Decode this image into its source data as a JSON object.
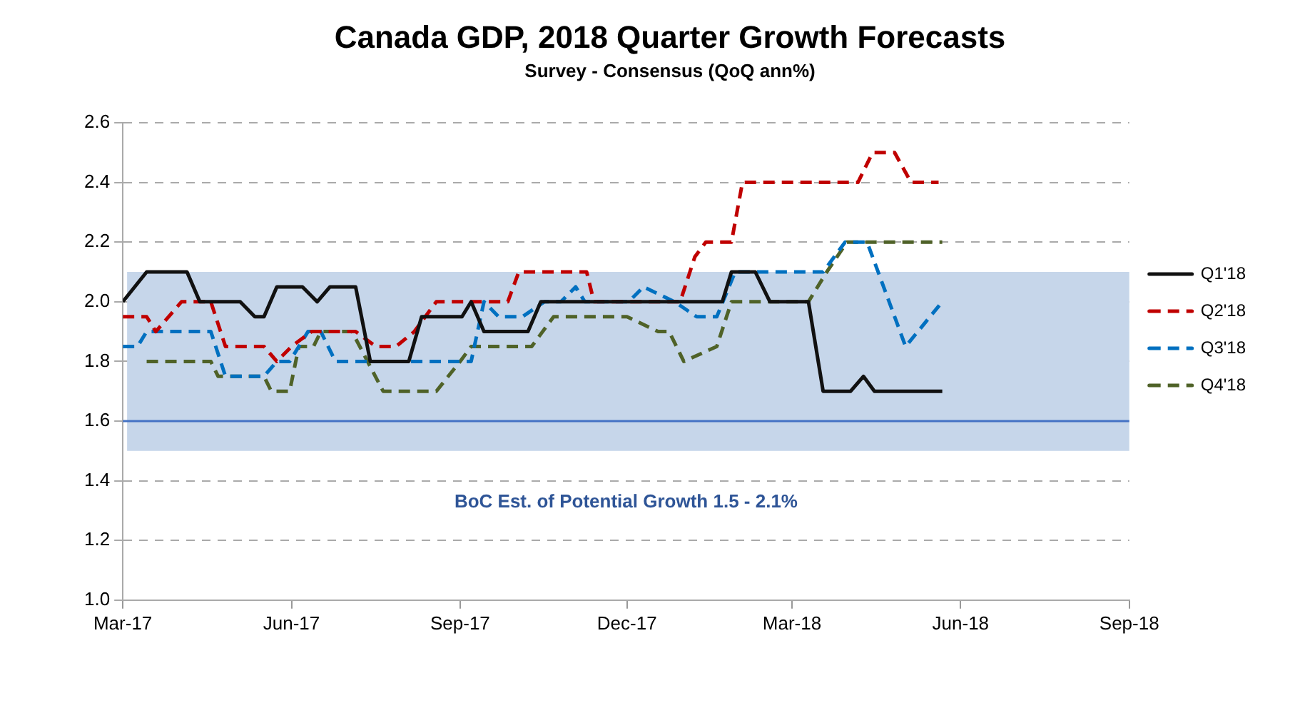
{
  "chart_data": {
    "type": "line",
    "title": "Canada GDP, 2018 Quarter Growth Forecasts",
    "subtitle": "Survey - Consensus (QoQ ann%)",
    "xlim": [
      "2017-03-01",
      "2018-09-01"
    ],
    "xticks": [
      {
        "value": "2017-03-01",
        "label": "Mar-17"
      },
      {
        "value": "2017-06-01",
        "label": "Jun-17"
      },
      {
        "value": "2017-09-01",
        "label": "Sep-17"
      },
      {
        "value": "2017-12-01",
        "label": "Dec-17"
      },
      {
        "value": "2018-03-01",
        "label": "Mar-18"
      },
      {
        "value": "2018-06-01",
        "label": "Jun-18"
      },
      {
        "value": "2018-09-01",
        "label": "Sep-18"
      }
    ],
    "ylim": [
      1.0,
      2.6
    ],
    "yticks": [
      {
        "value": 1.0,
        "label": "1.0"
      },
      {
        "value": 1.2,
        "label": "1.2"
      },
      {
        "value": 1.4,
        "label": "1.4"
      },
      {
        "value": 1.6,
        "label": "1.6"
      },
      {
        "value": 1.8,
        "label": "1.8"
      },
      {
        "value": 2.0,
        "label": "2.0"
      },
      {
        "value": 2.2,
        "label": "2.2"
      },
      {
        "value": 2.4,
        "label": "2.4"
      },
      {
        "value": 2.6,
        "label": "2.6"
      }
    ],
    "grid": "y",
    "legend": "right",
    "marker": "none",
    "bands": [
      {
        "axis": "y",
        "from": 1.5,
        "to": 2.1,
        "label": "BoC Est. of Potential Growth 1.5 - 2.1%",
        "color": "#c6d6ea"
      }
    ],
    "ref_lines": [
      {
        "axis": "y",
        "value": 1.6,
        "color": "#4472c4",
        "line_style": "solid"
      }
    ],
    "series": [
      {
        "name": "Q1'18",
        "color": "#111111",
        "line_style": "solid",
        "x": [
          "2017-03-01",
          "2017-03-14",
          "2017-04-05",
          "2017-04-12",
          "2017-05-04",
          "2017-05-12",
          "2017-05-17",
          "2017-05-24",
          "2017-06-07",
          "2017-06-15",
          "2017-06-22",
          "2017-07-06",
          "2017-07-14",
          "2017-08-04",
          "2017-08-11",
          "2017-09-02",
          "2017-09-07",
          "2017-09-14",
          "2017-10-08",
          "2017-10-15",
          "2018-01-22",
          "2018-01-27",
          "2018-02-09",
          "2018-02-17",
          "2018-03-10",
          "2018-03-18",
          "2018-04-02",
          "2018-04-09",
          "2018-04-15",
          "2018-05-22"
        ],
        "values": [
          2.0,
          2.1,
          2.1,
          2.0,
          2.0,
          1.95,
          1.95,
          2.05,
          2.05,
          2.0,
          2.05,
          2.05,
          1.8,
          1.8,
          1.95,
          1.95,
          2.0,
          1.9,
          1.9,
          2.0,
          2.0,
          2.1,
          2.1,
          2.0,
          2.0,
          1.7,
          1.7,
          1.75,
          1.7,
          1.7
        ]
      },
      {
        "name": "Q2'18",
        "color": "#c00000",
        "line_style": "dashed",
        "x": [
          "2017-03-01",
          "2017-03-14",
          "2017-03-19",
          "2017-04-02",
          "2017-04-18",
          "2017-04-26",
          "2017-05-17",
          "2017-05-24",
          "2017-06-01",
          "2017-06-12",
          "2017-07-06",
          "2017-07-17",
          "2017-07-28",
          "2017-08-07",
          "2017-08-19",
          "2017-09-07",
          "2017-09-27",
          "2017-10-03",
          "2017-11-09",
          "2017-11-13",
          "2017-12-30",
          "2018-01-07",
          "2018-01-13",
          "2018-01-27",
          "2018-02-02",
          "2018-04-06",
          "2018-04-14",
          "2018-04-26",
          "2018-05-05",
          "2018-05-20"
        ],
        "values": [
          1.95,
          1.95,
          1.9,
          2.0,
          2.0,
          1.85,
          1.85,
          1.8,
          1.85,
          1.9,
          1.9,
          1.85,
          1.85,
          1.9,
          2.0,
          2.0,
          2.0,
          2.1,
          2.1,
          2.0,
          2.0,
          2.15,
          2.2,
          2.2,
          2.4,
          2.4,
          2.5,
          2.5,
          2.4,
          2.4
        ]
      },
      {
        "name": "Q3'18",
        "color": "#0070c0",
        "line_style": "dashed",
        "x": [
          "2017-03-01",
          "2017-03-09",
          "2017-03-14",
          "2017-04-18",
          "2017-04-26",
          "2017-05-17",
          "2017-05-24",
          "2017-05-31",
          "2017-06-10",
          "2017-06-17",
          "2017-06-25",
          "2017-09-07",
          "2017-09-14",
          "2017-09-22",
          "2017-10-05",
          "2017-10-17",
          "2017-10-26",
          "2017-11-03",
          "2017-11-08",
          "2017-12-02",
          "2017-12-10",
          "2017-12-27",
          "2018-01-08",
          "2018-01-19",
          "2018-01-29",
          "2018-03-18",
          "2018-03-30",
          "2018-04-11",
          "2018-05-02",
          "2018-05-22"
        ],
        "values": [
          1.85,
          1.85,
          1.9,
          1.9,
          1.75,
          1.75,
          1.8,
          1.8,
          1.9,
          1.9,
          1.8,
          1.8,
          2.0,
          1.95,
          1.95,
          2.0,
          2.0,
          2.05,
          2.0,
          2.0,
          2.05,
          2.0,
          1.95,
          1.95,
          2.1,
          2.1,
          2.2,
          2.2,
          1.85,
          2.0
        ]
      },
      {
        "name": "Q4'18",
        "color": "#4f6228",
        "line_style": "dashed",
        "x": [
          "2017-03-14",
          "2017-04-18",
          "2017-04-22",
          "2017-05-17",
          "2017-05-21",
          "2017-05-31",
          "2017-06-05",
          "2017-06-13",
          "2017-06-17",
          "2017-07-04",
          "2017-07-21",
          "2017-08-19",
          "2017-09-01",
          "2017-09-07",
          "2017-10-10",
          "2017-10-22",
          "2017-12-01",
          "2017-12-18",
          "2017-12-24",
          "2018-01-01",
          "2018-01-19",
          "2018-01-27",
          "2018-03-10",
          "2018-03-20",
          "2018-03-31",
          "2018-05-22"
        ],
        "values": [
          1.8,
          1.8,
          1.75,
          1.75,
          1.7,
          1.7,
          1.85,
          1.85,
          1.9,
          1.9,
          1.7,
          1.7,
          1.8,
          1.85,
          1.85,
          1.95,
          1.95,
          1.9,
          1.9,
          1.8,
          1.85,
          2.0,
          2.0,
          2.1,
          2.2,
          2.2
        ]
      }
    ]
  }
}
